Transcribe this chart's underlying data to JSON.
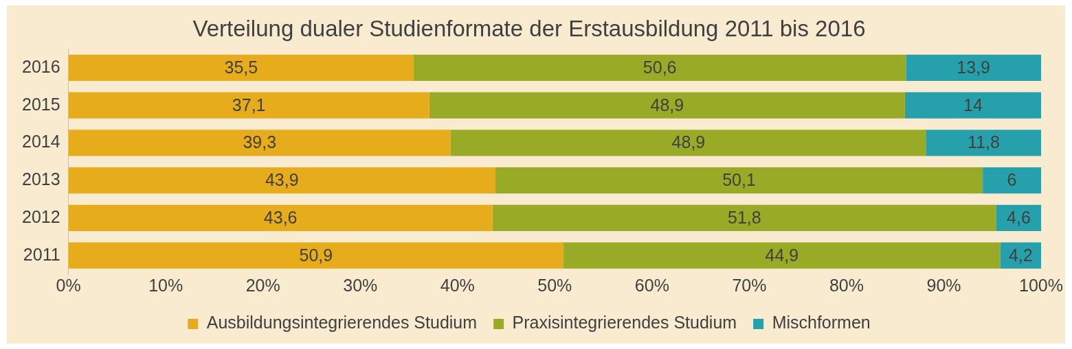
{
  "chart_data": {
    "type": "bar",
    "orientation": "horizontal",
    "stacked": true,
    "title": "Verteilung dualer Studienformate der Erstausbildung 2011 bis 2016",
    "categories": [
      "2016",
      "2015",
      "2014",
      "2013",
      "2012",
      "2011"
    ],
    "series": [
      {
        "name": "Ausbildungsintegrierendes Studium",
        "color": "#e6ac1c",
        "values": [
          35.5,
          37.1,
          39.3,
          43.9,
          43.6,
          50.9
        ],
        "value_labels": [
          "35,5",
          "37,1",
          "39,3",
          "43,9",
          "43,6",
          "50,9"
        ]
      },
      {
        "name": "Praxisintegrierendes Studium",
        "color": "#99ab26",
        "values": [
          50.6,
          48.9,
          48.9,
          50.1,
          51.8,
          44.9
        ],
        "value_labels": [
          "50,6",
          "48,9",
          "48,9",
          "50,1",
          "51,8",
          "44,9"
        ]
      },
      {
        "name": "Mischformen",
        "color": "#26a0ab",
        "values": [
          13.9,
          14,
          11.8,
          6,
          4.6,
          4.2
        ],
        "value_labels": [
          "13,9",
          "14",
          "11,8",
          "6",
          "4,6",
          "4,2"
        ]
      }
    ],
    "xlim": [
      0,
      100
    ],
    "xticks": [
      {
        "value": 0,
        "label": "0%"
      },
      {
        "value": 10,
        "label": "10%"
      },
      {
        "value": 20,
        "label": "20%"
      },
      {
        "value": 30,
        "label": "30%"
      },
      {
        "value": 40,
        "label": "40%"
      },
      {
        "value": 50,
        "label": "50%"
      },
      {
        "value": 60,
        "label": "60%"
      },
      {
        "value": 70,
        "label": "70%"
      },
      {
        "value": 80,
        "label": "80%"
      },
      {
        "value": 90,
        "label": "90%"
      },
      {
        "value": 100,
        "label": "100%"
      }
    ],
    "grid": false,
    "legend": "bottom"
  }
}
